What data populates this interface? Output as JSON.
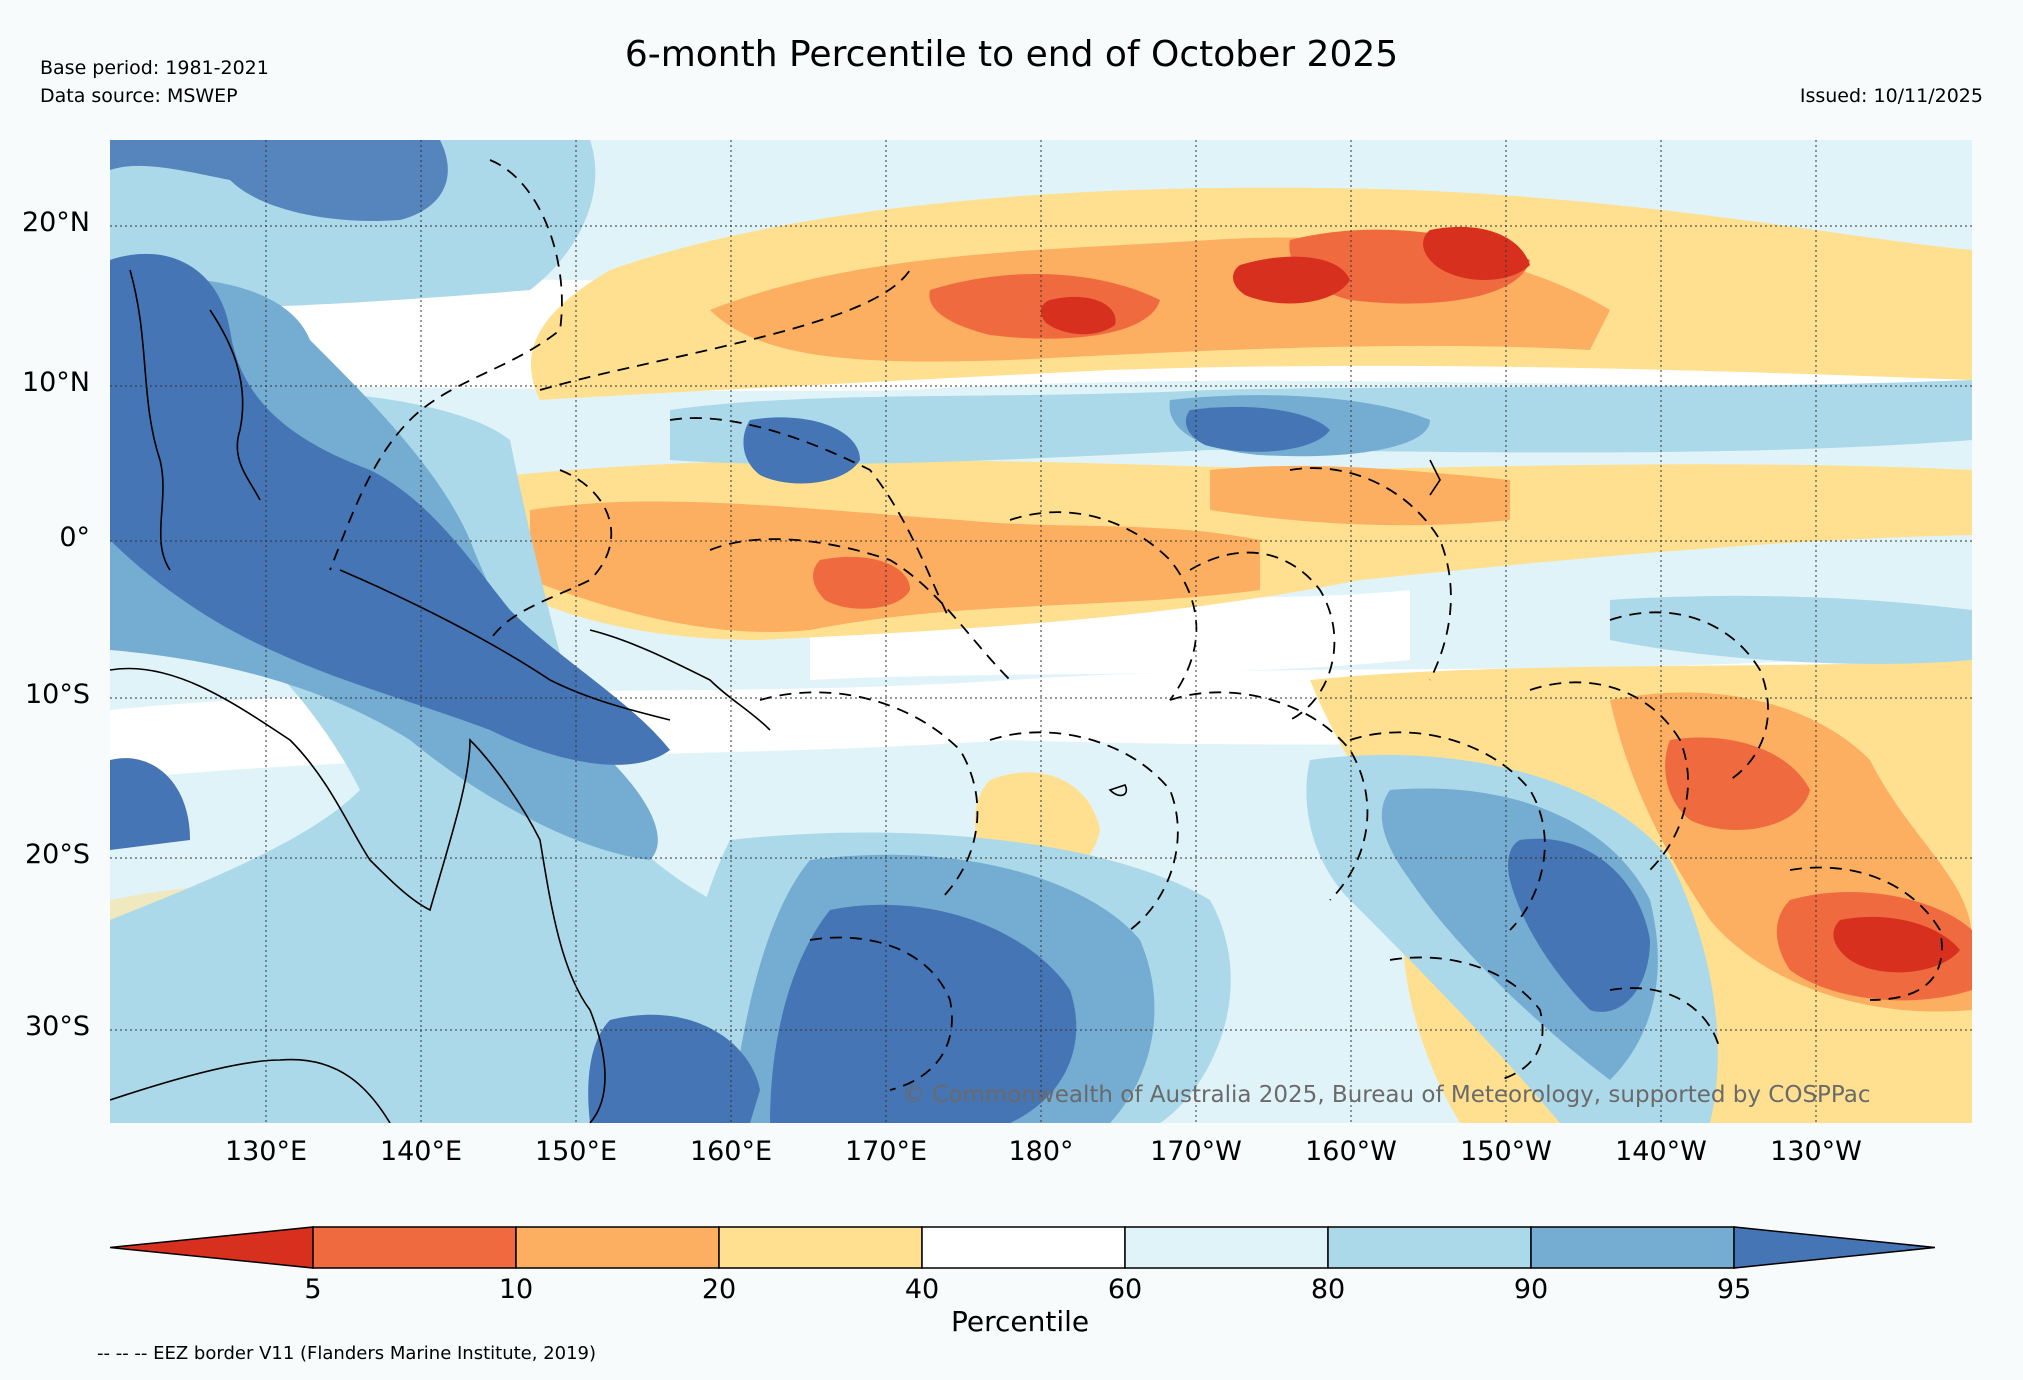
{
  "header": {
    "title": "6-month Percentile to end of October 2025",
    "base_period": "Base period: 1981-2021",
    "data_source": "Data source: MSWEP",
    "issued": "Issued: 10/11/2025"
  },
  "map": {
    "lat_labels": [
      "20°N",
      "10°N",
      "0°",
      "10°S",
      "20°S",
      "30°S"
    ],
    "lon_labels": [
      "130°E",
      "140°E",
      "150°E",
      "160°E",
      "170°E",
      "180°",
      "170°W",
      "160°W",
      "150°W",
      "140°W",
      "130°W"
    ],
    "lat_range": [
      -36,
      25
    ],
    "lon_range": [
      120,
      240
    ],
    "copyright": "© Commonwealth of Australia 2025, Bureau of Meteorology, supported by COSPPac"
  },
  "colorbar": {
    "label": "Percentile",
    "ticks": [
      "5",
      "10",
      "20",
      "40",
      "60",
      "80",
      "90",
      "95"
    ],
    "colors": [
      "#d7301f",
      "#ef6b3f",
      "#fcae61",
      "#fee090",
      "#ffffff",
      "#e0f3f8",
      "#abd9e9",
      "#74add1",
      "#4575b4"
    ]
  },
  "footnote": "-- -- -- EEZ border V11 (Flanders Marine Institute, 2019)"
}
